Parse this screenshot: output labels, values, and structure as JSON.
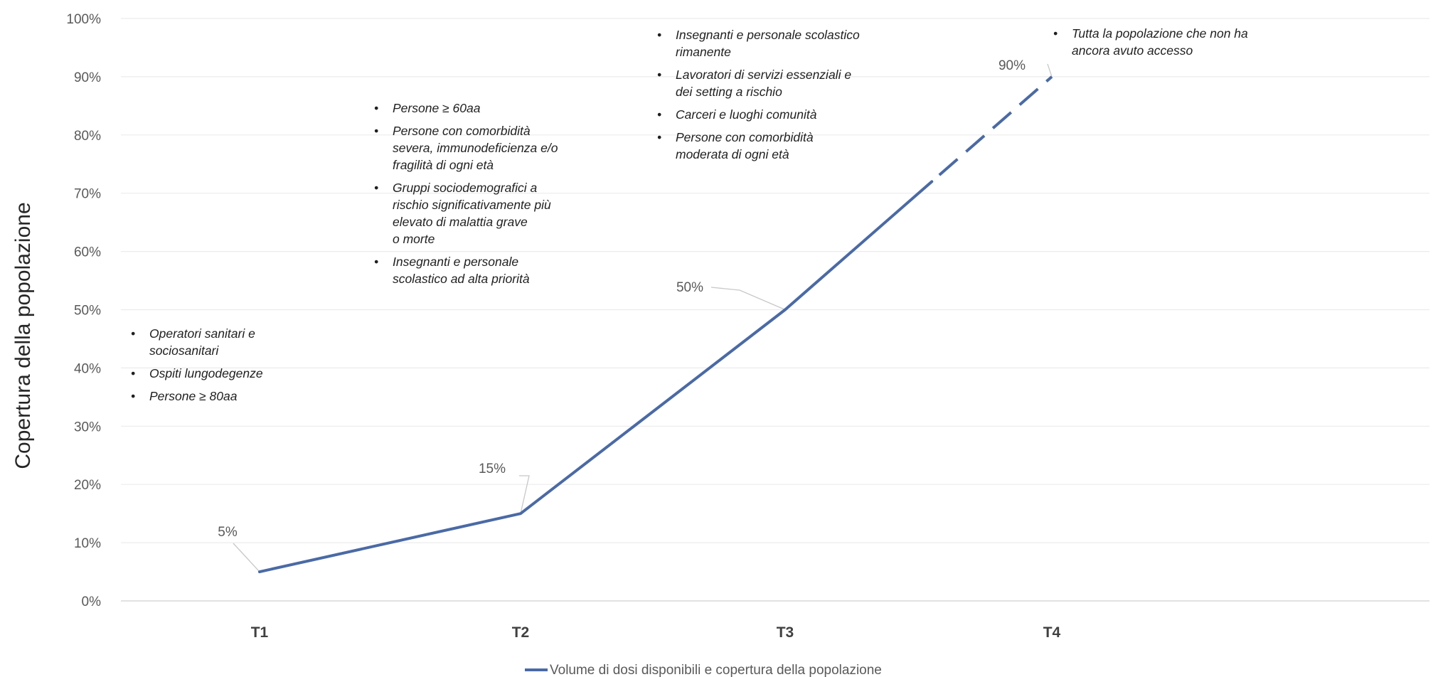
{
  "chart_data": {
    "type": "line",
    "categories": [
      "T1",
      "T2",
      "T3",
      "T4"
    ],
    "series": [
      {
        "name": "Volume di dosi disponibili e copertura della popolazione",
        "values": [
          5,
          15,
          50,
          90
        ],
        "data_labels": [
          "5%",
          "15%",
          "50%",
          "90%"
        ],
        "color": "#4a6aa5",
        "dashed_last_segment": true
      }
    ],
    "ylabel": "Copertura della popolazione",
    "ylim": [
      0,
      100
    ],
    "yticks": [
      "0%",
      "10%",
      "20%",
      "30%",
      "40%",
      "50%",
      "60%",
      "70%",
      "80%",
      "90%",
      "100%"
    ],
    "grid": true,
    "legend": "bottom",
    "annotations": [
      {
        "category": "T1",
        "bullets": [
          [
            "Operatori sanitari e",
            "sociosanitari"
          ],
          [
            "Ospiti lungodegenze"
          ],
          [
            "Persone ≥ 80aa"
          ]
        ]
      },
      {
        "category": "T2",
        "bullets": [
          [
            "Persone ≥ 60aa"
          ],
          [
            "Persone con comorbidità",
            "severa, immunodeficienza e/o",
            "fragilità di ogni età"
          ],
          [
            "Gruppi sociodemografici a",
            "rischio significativamente più",
            "elevato di malattia grave",
            "o morte"
          ],
          [
            "Insegnanti e personale",
            "scolastico ad alta priorità"
          ]
        ]
      },
      {
        "category": "T3",
        "bullets": [
          [
            "Insegnanti e personale scolastico",
            "rimanente"
          ],
          [
            "Lavoratori di servizi essenziali e",
            "dei setting a rischio"
          ],
          [
            "Carceri e luoghi comunità"
          ],
          [
            "Persone con comorbidità",
            "moderata di ogni età"
          ]
        ]
      },
      {
        "category": "T4",
        "bullets": [
          [
            "Tutta la popolazione che non ha",
            "ancora avuto accesso"
          ]
        ]
      }
    ]
  }
}
